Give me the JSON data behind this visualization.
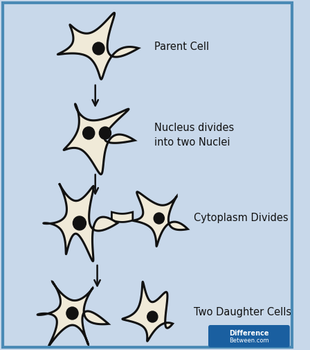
{
  "background_color": "#c8d8ea",
  "border_color": "#4a8ab5",
  "cell_fill": "#f0ead8",
  "cell_edge": "#111111",
  "nucleus_color": "#111111",
  "arrow_color": "#111111",
  "text_color": "#111111",
  "labels": {
    "stage1": "Parent Cell",
    "stage2": "Nucleus divides\ninto two Nuclei",
    "stage3": "Cytoplasm Divides",
    "stage4": "Two Daughter Cells"
  },
  "label_fontsize": 10.5,
  "watermark_text1": "Difference",
  "watermark_text2": "Between.com",
  "watermark_bg": "#1a5fa0",
  "watermark_text_color": "#ffffff",
  "fig_width": 4.48,
  "fig_height": 5.05,
  "dpi": 100
}
